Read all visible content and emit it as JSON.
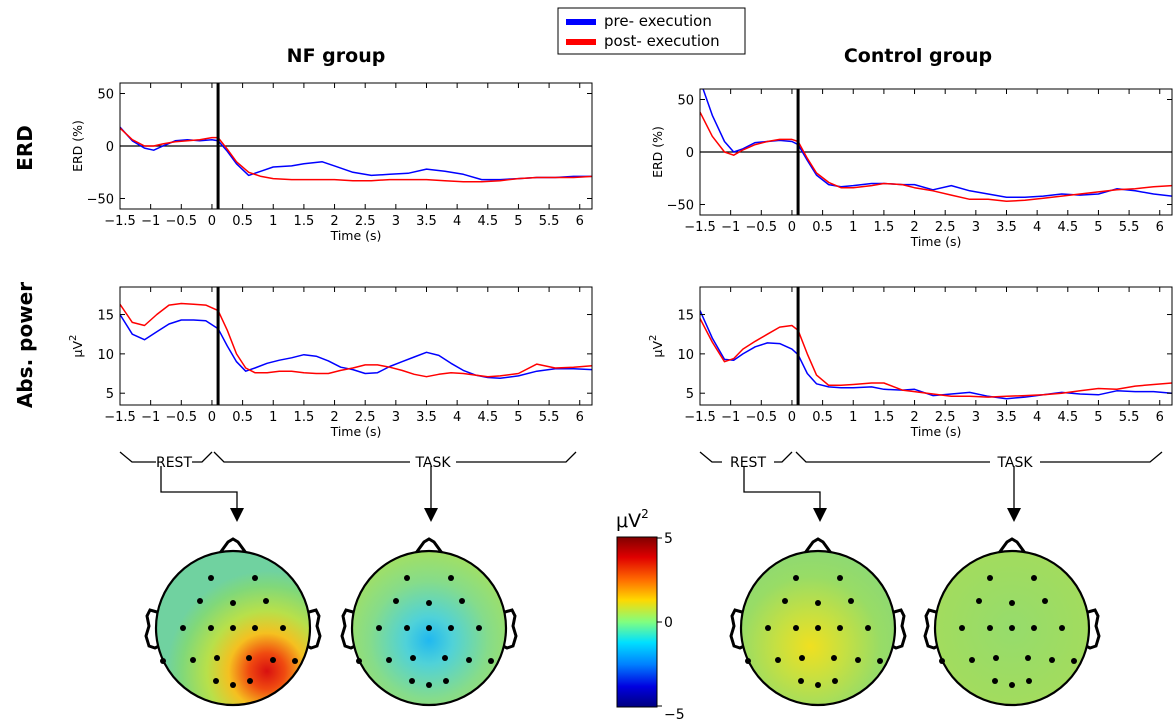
{
  "legend": [
    {
      "label": "pre- execution",
      "color": "#0000ff"
    },
    {
      "label": "post- execution",
      "color": "#ff0000"
    }
  ],
  "column_titles": [
    "NF group",
    "Control group"
  ],
  "row_titles": [
    "ERD",
    "Abs. power"
  ],
  "phase_labels": {
    "rest": "REST",
    "task": "TASK"
  },
  "colorbar": {
    "label": "μV",
    "label_sup": "2",
    "max": 5,
    "mid": 0,
    "min": -5,
    "tick_labels": [
      "5",
      "0",
      "−5"
    ]
  },
  "chart_data": [
    {
      "type": "line",
      "ylabel": "ERD (%)",
      "xlabel": "Time (s)",
      "xlim": [
        -1.5,
        6.2
      ],
      "ylim": [
        -60,
        60
      ],
      "xticks": [
        -1.5,
        -1,
        -0.5,
        0,
        0.5,
        1,
        1.5,
        2,
        2.5,
        3,
        3.5,
        4,
        4.5,
        5,
        5.5,
        6
      ],
      "xtick_labels": [
        "−1.5",
        "−1",
        "−0.5",
        "0",
        "0.5",
        "1",
        "1.5",
        "2",
        "2.5",
        "3",
        "3.5",
        "4",
        "4.5",
        "5",
        "5.5",
        "6"
      ],
      "yticks": [
        50,
        0,
        -50
      ],
      "ytick_labels": [
        "50",
        "0",
        "−50"
      ],
      "zero_line": true,
      "event_line_x": 0.1,
      "series": [
        {
          "name": "pre- execution",
          "color": "#0000ff",
          "x": [
            -1.5,
            -1.3,
            -1.1,
            -0.95,
            -0.8,
            -0.6,
            -0.4,
            -0.2,
            0.0,
            0.1,
            0.25,
            0.4,
            0.6,
            0.8,
            1.0,
            1.3,
            1.5,
            1.8,
            2.0,
            2.3,
            2.6,
            2.9,
            3.2,
            3.5,
            3.8,
            4.1,
            4.4,
            4.7,
            5.0,
            5.3,
            5.6,
            5.9,
            6.2
          ],
          "y": [
            18,
            5,
            -2,
            -4,
            0,
            5,
            6,
            5,
            6,
            5,
            -5,
            -17,
            -28,
            -24,
            -20,
            -19,
            -17,
            -15,
            -19,
            -25,
            -28,
            -27,
            -26,
            -22,
            -24,
            -27,
            -32,
            -32,
            -31,
            -30,
            -30,
            -29,
            -29
          ]
        },
        {
          "name": "post- execution",
          "color": "#ff0000",
          "x": [
            -1.5,
            -1.3,
            -1.1,
            -0.95,
            -0.8,
            -0.6,
            -0.4,
            -0.2,
            0.0,
            0.1,
            0.25,
            0.4,
            0.6,
            0.8,
            1.0,
            1.3,
            1.5,
            1.8,
            2.0,
            2.3,
            2.6,
            2.9,
            3.2,
            3.5,
            3.8,
            4.1,
            4.4,
            4.7,
            5.0,
            5.3,
            5.6,
            5.9,
            6.2
          ],
          "y": [
            17,
            6,
            0,
            0,
            2,
            4,
            5,
            6,
            8,
            8,
            -3,
            -15,
            -25,
            -29,
            -31,
            -32,
            -32,
            -32,
            -32,
            -33,
            -33,
            -32,
            -32,
            -32,
            -33,
            -34,
            -34,
            -33,
            -31,
            -30,
            -30,
            -30,
            -29
          ]
        }
      ]
    },
    {
      "type": "line",
      "ylabel": "ERD (%)",
      "xlabel": "Time (s)",
      "xlim": [
        -1.5,
        6.2
      ],
      "ylim": [
        -60,
        60
      ],
      "xticks": [
        -1.5,
        -1,
        -0.5,
        0,
        0.5,
        1,
        1.5,
        2,
        2.5,
        3,
        3.5,
        4,
        4.5,
        5,
        5.5,
        6
      ],
      "xtick_labels": [
        "−1.5",
        "−1",
        "−0.5",
        "0",
        "0.5",
        "1",
        "1.5",
        "2",
        "2.5",
        "3",
        "3.5",
        "4",
        "4.5",
        "5",
        "5.5",
        "6"
      ],
      "yticks": [
        50,
        0,
        -50
      ],
      "ytick_labels": [
        "50",
        "0",
        "−50"
      ],
      "zero_line": true,
      "event_line_x": 0.1,
      "series": [
        {
          "name": "pre- execution",
          "color": "#0000ff",
          "x": [
            -1.45,
            -1.3,
            -1.1,
            -0.95,
            -0.8,
            -0.6,
            -0.4,
            -0.2,
            0.0,
            0.1,
            0.25,
            0.4,
            0.6,
            0.8,
            1.0,
            1.3,
            1.5,
            1.8,
            2.0,
            2.3,
            2.6,
            2.9,
            3.2,
            3.5,
            3.8,
            4.1,
            4.4,
            4.7,
            5.0,
            5.3,
            5.6,
            5.9,
            6.2
          ],
          "y": [
            60,
            35,
            10,
            0,
            3,
            9,
            10,
            11,
            10,
            7,
            -8,
            -22,
            -31,
            -33,
            -32,
            -30,
            -30,
            -31,
            -31,
            -36,
            -32,
            -37,
            -40,
            -43,
            -43,
            -42,
            -40,
            -41,
            -40,
            -35,
            -37,
            -40,
            -42
          ]
        },
        {
          "name": "post- execution",
          "color": "#ff0000",
          "x": [
            -1.5,
            -1.3,
            -1.1,
            -0.95,
            -0.8,
            -0.6,
            -0.4,
            -0.2,
            0.0,
            0.1,
            0.25,
            0.4,
            0.6,
            0.8,
            1.0,
            1.3,
            1.5,
            1.8,
            2.0,
            2.3,
            2.6,
            2.9,
            3.2,
            3.5,
            3.8,
            4.1,
            4.4,
            4.7,
            5.0,
            5.3,
            5.6,
            5.9,
            6.2
          ],
          "y": [
            38,
            15,
            0,
            -3,
            2,
            7,
            10,
            12,
            12,
            10,
            -6,
            -20,
            -29,
            -34,
            -34,
            -32,
            -30,
            -31,
            -34,
            -37,
            -41,
            -45,
            -45,
            -47,
            -46,
            -44,
            -42,
            -40,
            -38,
            -36,
            -35,
            -33,
            -32
          ]
        }
      ]
    },
    {
      "type": "line",
      "ylabel": "μV",
      "ylabel_sup": "2",
      "xlabel": "Time (s)",
      "xlim": [
        -1.5,
        6.2
      ],
      "ylim": [
        3.5,
        18.5
      ],
      "xticks": [
        -1.5,
        -1,
        -0.5,
        0,
        0.5,
        1,
        1.5,
        2,
        2.5,
        3,
        3.5,
        4,
        4.5,
        5,
        5.5,
        6
      ],
      "xtick_labels": [
        "−1.5",
        "−1",
        "−0.5",
        "0",
        "0.5",
        "1",
        "1.5",
        "2",
        "2.5",
        "3",
        "3.5",
        "4",
        "4.5",
        "5",
        "5.5",
        "6"
      ],
      "yticks": [
        15,
        10,
        5
      ],
      "ytick_labels": [
        "15",
        "10",
        "5"
      ],
      "zero_line": false,
      "event_line_x": 0.1,
      "series": [
        {
          "name": "pre- execution",
          "color": "#0000ff",
          "x": [
            -1.5,
            -1.3,
            -1.1,
            -0.9,
            -0.7,
            -0.5,
            -0.3,
            -0.1,
            0.1,
            0.25,
            0.4,
            0.55,
            0.7,
            0.9,
            1.1,
            1.3,
            1.5,
            1.7,
            1.9,
            2.1,
            2.3,
            2.5,
            2.7,
            2.9,
            3.1,
            3.3,
            3.5,
            3.7,
            3.9,
            4.1,
            4.3,
            4.5,
            4.7,
            5.0,
            5.3,
            5.6,
            5.9,
            6.2
          ],
          "y": [
            15,
            12.5,
            11.8,
            12.8,
            13.8,
            14.3,
            14.3,
            14.2,
            13.2,
            11.0,
            9.0,
            7.8,
            8.2,
            8.8,
            9.2,
            9.5,
            9.9,
            9.7,
            9.1,
            8.3,
            8.0,
            7.5,
            7.6,
            8.4,
            9.0,
            9.6,
            10.2,
            9.8,
            8.8,
            7.9,
            7.3,
            7.0,
            6.9,
            7.2,
            7.8,
            8.1,
            8.1,
            8.0
          ]
        },
        {
          "name": "post- execution",
          "color": "#ff0000",
          "x": [
            -1.5,
            -1.3,
            -1.1,
            -0.9,
            -0.7,
            -0.5,
            -0.3,
            -0.1,
            0.1,
            0.25,
            0.4,
            0.55,
            0.7,
            0.9,
            1.1,
            1.3,
            1.5,
            1.7,
            1.9,
            2.1,
            2.3,
            2.5,
            2.7,
            2.9,
            3.1,
            3.3,
            3.5,
            3.7,
            3.9,
            4.1,
            4.3,
            4.5,
            4.7,
            5.0,
            5.3,
            5.6,
            5.9,
            6.2
          ],
          "y": [
            16.3,
            14.0,
            13.6,
            15.0,
            16.2,
            16.4,
            16.3,
            16.2,
            15.5,
            13.0,
            10.0,
            8.2,
            7.6,
            7.6,
            7.8,
            7.8,
            7.6,
            7.5,
            7.5,
            7.9,
            8.2,
            8.6,
            8.6,
            8.3,
            7.9,
            7.4,
            7.1,
            7.4,
            7.6,
            7.5,
            7.3,
            7.1,
            7.2,
            7.5,
            8.7,
            8.2,
            8.3,
            8.5
          ]
        }
      ]
    },
    {
      "type": "line",
      "ylabel": "μV",
      "ylabel_sup": "2",
      "xlabel": "Time (s)",
      "xlim": [
        -1.5,
        6.2
      ],
      "ylim": [
        3.5,
        18.5
      ],
      "xticks": [
        -1.5,
        -1,
        -0.5,
        0,
        0.5,
        1,
        1.5,
        2,
        2.5,
        3,
        3.5,
        4,
        4.5,
        5,
        5.5,
        6
      ],
      "xtick_labels": [
        "−1.5",
        "−1",
        "−0.5",
        "0",
        "0.5",
        "1",
        "1.5",
        "2",
        "2.5",
        "3",
        "3.5",
        "4",
        "4.5",
        "5",
        "5.5",
        "6"
      ],
      "yticks": [
        15,
        10,
        5
      ],
      "ytick_labels": [
        "15",
        "10",
        "5"
      ],
      "zero_line": false,
      "event_line_x": 0.1,
      "series": [
        {
          "name": "pre- execution",
          "color": "#0000ff",
          "x": [
            -1.5,
            -1.3,
            -1.1,
            -0.95,
            -0.8,
            -0.6,
            -0.4,
            -0.2,
            0.0,
            0.1,
            0.25,
            0.4,
            0.6,
            0.8,
            1.0,
            1.3,
            1.5,
            1.8,
            2.0,
            2.3,
            2.6,
            2.9,
            3.2,
            3.5,
            3.8,
            4.1,
            4.4,
            4.7,
            5.0,
            5.3,
            5.6,
            5.9,
            6.2
          ],
          "y": [
            15.5,
            12.0,
            9.3,
            9.2,
            10.0,
            10.9,
            11.4,
            11.3,
            10.6,
            9.9,
            7.5,
            6.2,
            5.8,
            5.7,
            5.7,
            5.8,
            5.5,
            5.4,
            5.5,
            4.7,
            4.9,
            5.1,
            4.6,
            4.3,
            4.5,
            4.8,
            5.1,
            4.9,
            4.8,
            5.3,
            5.2,
            5.2,
            5.0
          ]
        },
        {
          "name": "post- execution",
          "color": "#ff0000",
          "x": [
            -1.5,
            -1.3,
            -1.1,
            -0.95,
            -0.8,
            -0.6,
            -0.4,
            -0.2,
            0.0,
            0.1,
            0.25,
            0.4,
            0.6,
            0.8,
            1.0,
            1.3,
            1.5,
            1.8,
            2.0,
            2.3,
            2.6,
            2.9,
            3.2,
            3.5,
            3.8,
            4.1,
            4.4,
            4.7,
            5.0,
            5.3,
            5.6,
            5.9,
            6.2
          ],
          "y": [
            14.5,
            11.5,
            9.0,
            9.4,
            10.6,
            11.6,
            12.5,
            13.4,
            13.6,
            13.0,
            10.0,
            7.3,
            6.0,
            6.0,
            6.1,
            6.3,
            6.3,
            5.4,
            5.2,
            4.9,
            4.6,
            4.6,
            4.5,
            4.6,
            4.7,
            4.8,
            5.0,
            5.3,
            5.6,
            5.5,
            5.9,
            6.1,
            6.3
          ]
        }
      ]
    }
  ]
}
